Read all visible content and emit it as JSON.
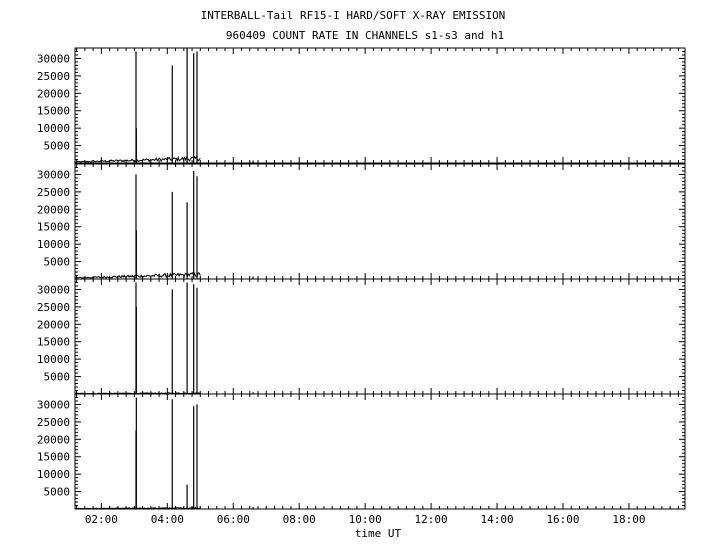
{
  "title_line1": "INTERBALL-Tail RF15-I HARD/SOFT X-RAY EMISSION",
  "title_line2": "960409  COUNT RATE IN CHANNELS s1-s3 and h1",
  "xlabel": "time UT",
  "chart_data": {
    "type": "line",
    "x_ticks": [
      "02:00",
      "04:00",
      "06:00",
      "08:00",
      "10:00",
      "12:00",
      "14:00",
      "16:00",
      "18:00"
    ],
    "x_tick_hours": [
      2,
      4,
      6,
      8,
      10,
      12,
      14,
      16,
      18
    ],
    "xlim_hours": [
      1.2,
      19.7
    ],
    "ylim": [
      0,
      33000
    ],
    "y_ticks": [
      5000,
      10000,
      15000,
      20000,
      25000,
      30000
    ],
    "y_tick_labels": [
      "5000",
      "10000",
      "15000",
      "20000",
      "25000",
      "30000"
    ],
    "panels": [
      {
        "baseline": {
          "start_hour": 1.2,
          "end_hour": 5.0,
          "start_level": 300,
          "end_level": 1300
        },
        "peaks": [
          {
            "hour": 3.05,
            "value": 32000
          },
          {
            "hour": 3.06,
            "value": 10000
          },
          {
            "hour": 4.15,
            "value": 28000
          },
          {
            "hour": 4.6,
            "value": 33000
          },
          {
            "hour": 4.8,
            "value": 31500
          },
          {
            "hour": 4.9,
            "value": 32000
          },
          {
            "hour": 6.6,
            "value": 700
          }
        ]
      },
      {
        "baseline": {
          "start_hour": 1.2,
          "end_hour": 5.0,
          "start_level": 300,
          "end_level": 1300
        },
        "peaks": [
          {
            "hour": 3.05,
            "value": 30000
          },
          {
            "hour": 3.06,
            "value": 14000
          },
          {
            "hour": 4.15,
            "value": 25000
          },
          {
            "hour": 4.6,
            "value": 22000
          },
          {
            "hour": 4.8,
            "value": 31000
          },
          {
            "hour": 4.9,
            "value": 29500
          },
          {
            "hour": 6.6,
            "value": 700
          }
        ]
      },
      {
        "baseline": {
          "start_hour": 1.2,
          "end_hour": 5.0,
          "start_level": 150,
          "end_level": 250
        },
        "peaks": [
          {
            "hour": 3.05,
            "value": 32000
          },
          {
            "hour": 3.06,
            "value": 25000
          },
          {
            "hour": 4.15,
            "value": 30000
          },
          {
            "hour": 4.6,
            "value": 32000
          },
          {
            "hour": 4.8,
            "value": 31500
          },
          {
            "hour": 4.9,
            "value": 30500
          },
          {
            "hour": 6.6,
            "value": 500
          }
        ]
      },
      {
        "baseline": {
          "start_hour": 1.2,
          "end_hour": 5.0,
          "start_level": 150,
          "end_level": 300
        },
        "peaks": [
          {
            "hour": 3.05,
            "value": 22500
          },
          {
            "hour": 3.06,
            "value": 32000
          },
          {
            "hour": 4.15,
            "value": 31500
          },
          {
            "hour": 4.6,
            "value": 7000
          },
          {
            "hour": 4.8,
            "value": 29500
          },
          {
            "hour": 4.9,
            "value": 30000
          },
          {
            "hour": 6.6,
            "value": 600
          }
        ]
      }
    ]
  }
}
